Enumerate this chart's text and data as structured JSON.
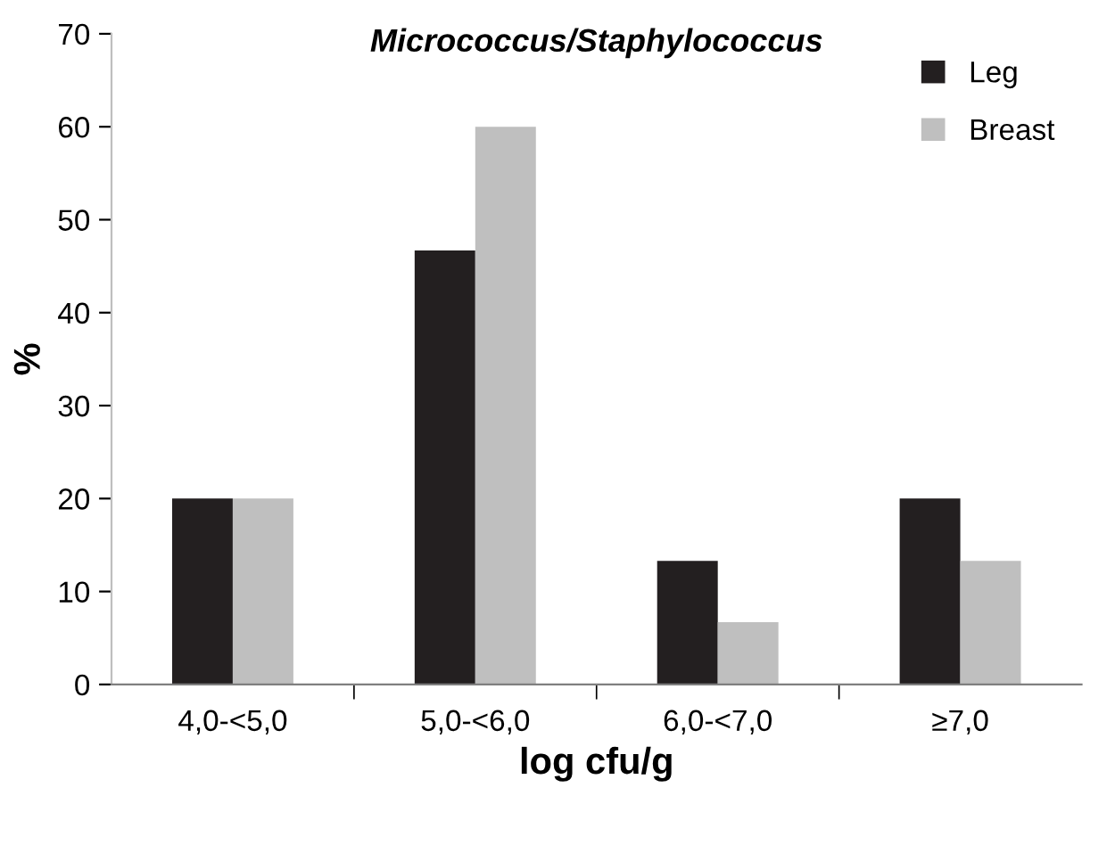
{
  "chart_data": {
    "type": "bar",
    "title": "Micrococcus/Staphylococcus",
    "xlabel": "log cfu/g",
    "ylabel": "%",
    "categories": [
      "4,0-<5,0",
      "5,0-<6,0",
      "6,0-<7,0",
      "≥7,0"
    ],
    "series": [
      {
        "name": "Leg",
        "color": "#231f20",
        "values": [
          20,
          46.7,
          13.3,
          20
        ]
      },
      {
        "name": "Breast",
        "color": "#bfbfbf",
        "values": [
          20,
          60,
          6.7,
          13.3
        ]
      }
    ],
    "ylim": [
      0,
      70
    ],
    "yticks": [
      0,
      10,
      20,
      30,
      40,
      50,
      60,
      70
    ],
    "grid": false,
    "legend": "top right"
  }
}
